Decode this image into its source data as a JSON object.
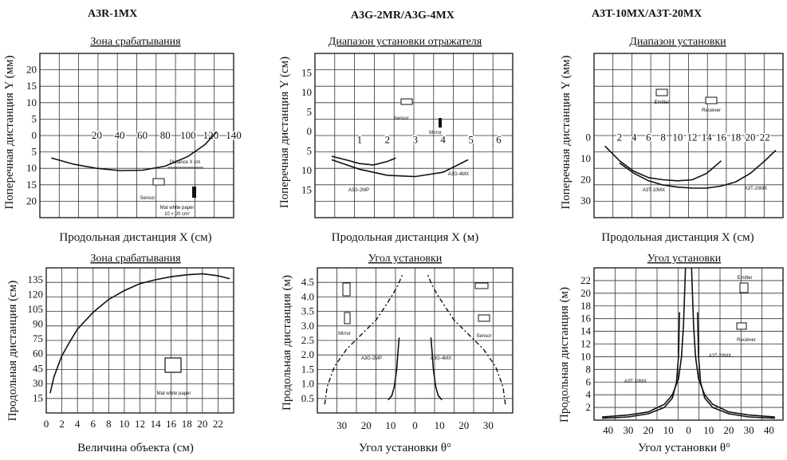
{
  "headers": [
    "A3R-1MX",
    "A3G-2MR/A3G-4MX",
    "A3T-10MX/A3T-20MX"
  ],
  "chart_data": [
    {
      "id": "c1",
      "type": "line",
      "title": "Зона срабатывания",
      "xlabel": "Продольная дистанция X (см)",
      "ylabel": "Поперечная дистанция Y (мм)",
      "x_ticks": [
        "20",
        "40",
        "60",
        "80",
        "100",
        "120",
        "140"
      ],
      "y_ticks": [
        "20",
        "15",
        "10",
        "5",
        "0",
        "5",
        "10",
        "15",
        "20"
      ],
      "annotations": [
        "Distance X cm",
        "Sensor",
        "Mat white paper",
        "10 × 20 cm²"
      ],
      "series": [
        {
          "x": [
            -20,
            0,
            20,
            40,
            60,
            80,
            100,
            115,
            125
          ],
          "y": [
            -6,
            -7.7,
            -8.8,
            -9.4,
            -9.3,
            -8.2,
            -5.6,
            -2.4,
            1
          ]
        }
      ]
    },
    {
      "id": "c2",
      "type": "line",
      "title": "Диапазон установки отражателя",
      "xlabel": "Продольная дистанция X (м)",
      "ylabel": "Поперечная дистанция Y (см)",
      "x_ticks": [
        "1",
        "2",
        "3",
        "4",
        "5",
        "6"
      ],
      "y_ticks": [
        "15",
        "10",
        "5",
        "0",
        "5",
        "10",
        "15"
      ],
      "annotations": [
        "Sensor",
        "Mirror",
        "A3G-2MP",
        "A3G-4MX"
      ],
      "series": [
        {
          "name": "A3G-2MP",
          "x": [
            0,
            0.5,
            1,
            1.5,
            2,
            2.3
          ],
          "y": [
            -3.8,
            -4.6,
            -5.5,
            -5.8,
            -5,
            -4.2
          ]
        },
        {
          "name": "A3G-4MX",
          "x": [
            0,
            1,
            2,
            3,
            4,
            4.9
          ],
          "y": [
            -4.6,
            -6.8,
            -8.2,
            -8.5,
            -7.5,
            -4.6
          ]
        }
      ]
    },
    {
      "id": "c3",
      "type": "line",
      "title": "Диапазон установки",
      "xlabel": "Продольная дистанция X (см)",
      "ylabel": "Поперечная дистанция Y (мм)",
      "x_ticks": [
        "2",
        "4",
        "6",
        "8",
        "10",
        "12",
        "14",
        "16",
        "18",
        "20",
        "22"
      ],
      "y_ticks": [
        "0",
        "10",
        "20",
        "30"
      ],
      "annotations": [
        "Emitter",
        "Receiver",
        "A3T-10MX",
        "A3T-20MX"
      ],
      "series": [
        {
          "name": "A3T-10MX",
          "x": [
            0,
            2,
            4,
            6,
            8,
            10,
            12,
            14,
            16
          ],
          "y": [
            4,
            11,
            16,
            19,
            20,
            20.5,
            20,
            17,
            11
          ]
        },
        {
          "name": "A3T-20MX",
          "x": [
            2,
            4,
            6,
            8,
            10,
            12,
            14,
            16,
            18,
            20,
            22,
            23.5
          ],
          "y": [
            12,
            17,
            20.5,
            22.5,
            23.5,
            24,
            24,
            23,
            21,
            17,
            11,
            6
          ]
        }
      ]
    },
    {
      "id": "c4",
      "type": "line",
      "title": "Зона срабатывания",
      "xlabel": "Величина объекта (см)",
      "ylabel": "Продольная дистанция (см)",
      "x_ticks": [
        "0",
        "2",
        "4",
        "6",
        "8",
        "10",
        "12",
        "14",
        "16",
        "18",
        "20",
        "22"
      ],
      "y_ticks": [
        "135",
        "120",
        "105",
        "90",
        "75",
        "60",
        "45",
        "30",
        "15"
      ],
      "annotations": [
        "Mat white paper"
      ],
      "series": [
        {
          "x": [
            0.5,
            1,
            2,
            3,
            4,
            6,
            8,
            10,
            12,
            14,
            16,
            18,
            20,
            22,
            23.5
          ],
          "y": [
            20,
            37,
            58,
            72,
            85,
            102,
            115,
            124,
            131,
            135,
            138,
            140,
            141,
            139,
            136
          ]
        }
      ]
    },
    {
      "id": "c5",
      "type": "line",
      "title": "Угол установки",
      "xlabel": "Угол установки θ°",
      "ylabel": "Продольная дистанция (м)",
      "x_ticks": [
        "30",
        "20",
        "10",
        "0",
        "10",
        "20",
        "30"
      ],
      "y_ticks": [
        "4.5",
        "4.0",
        "3.5",
        "3.0",
        "2.5",
        "2.0",
        "1.5",
        "1.0",
        "0.5"
      ],
      "annotations": [
        "Mirror",
        "Sensor",
        "A3G-2MP",
        "A3G-4MX"
      ],
      "series": [
        {
          "name": "A3G-2MP",
          "x": [
            -11,
            -9.5,
            -8.5,
            -7.5,
            -7,
            -6.5
          ],
          "y": [
            0.45,
            0.6,
            0.9,
            1.5,
            2.1,
            2.6
          ]
        },
        {
          "name": "A3G-4MX",
          "x": [
            -37,
            -36,
            -33,
            -28,
            -22,
            -16,
            -12,
            -9,
            -7,
            -6,
            -5
          ],
          "y": [
            0.3,
            0.9,
            1.6,
            2.2,
            2.7,
            3.2,
            3.7,
            4.1,
            4.4,
            4.6,
            4.8
          ]
        }
      ]
    },
    {
      "id": "c6",
      "type": "line",
      "title": "Угол установки",
      "xlabel": "Угол установки θ°",
      "ylabel": "Продольная дистанция (м)",
      "x_ticks": [
        "40",
        "30",
        "20",
        "10",
        "0",
        "10",
        "20",
        "30",
        "40"
      ],
      "y_ticks": [
        "22",
        "20",
        "18",
        "16",
        "14",
        "12",
        "10",
        "8",
        "6",
        "4",
        "2"
      ],
      "annotations": [
        "Emitter",
        "Receiver",
        "A3T-20MX",
        "A3T-10MX"
      ],
      "series": [
        {
          "name": "A3T-20MX",
          "x": [
            -43,
            -30,
            -20,
            -12,
            -8,
            -5,
            -3.5,
            -2.5,
            -1.5
          ],
          "y": [
            0.5,
            0.8,
            1.3,
            2.5,
            4,
            6.5,
            10,
            15,
            24
          ]
        },
        {
          "name": "A3T-10MX",
          "x": [
            -43,
            -30,
            -20,
            -12,
            -8,
            -6,
            -5,
            -4.5
          ],
          "y": [
            0.3,
            0.5,
            1,
            2,
            3.5,
            6,
            10,
            17
          ]
        }
      ]
    }
  ]
}
